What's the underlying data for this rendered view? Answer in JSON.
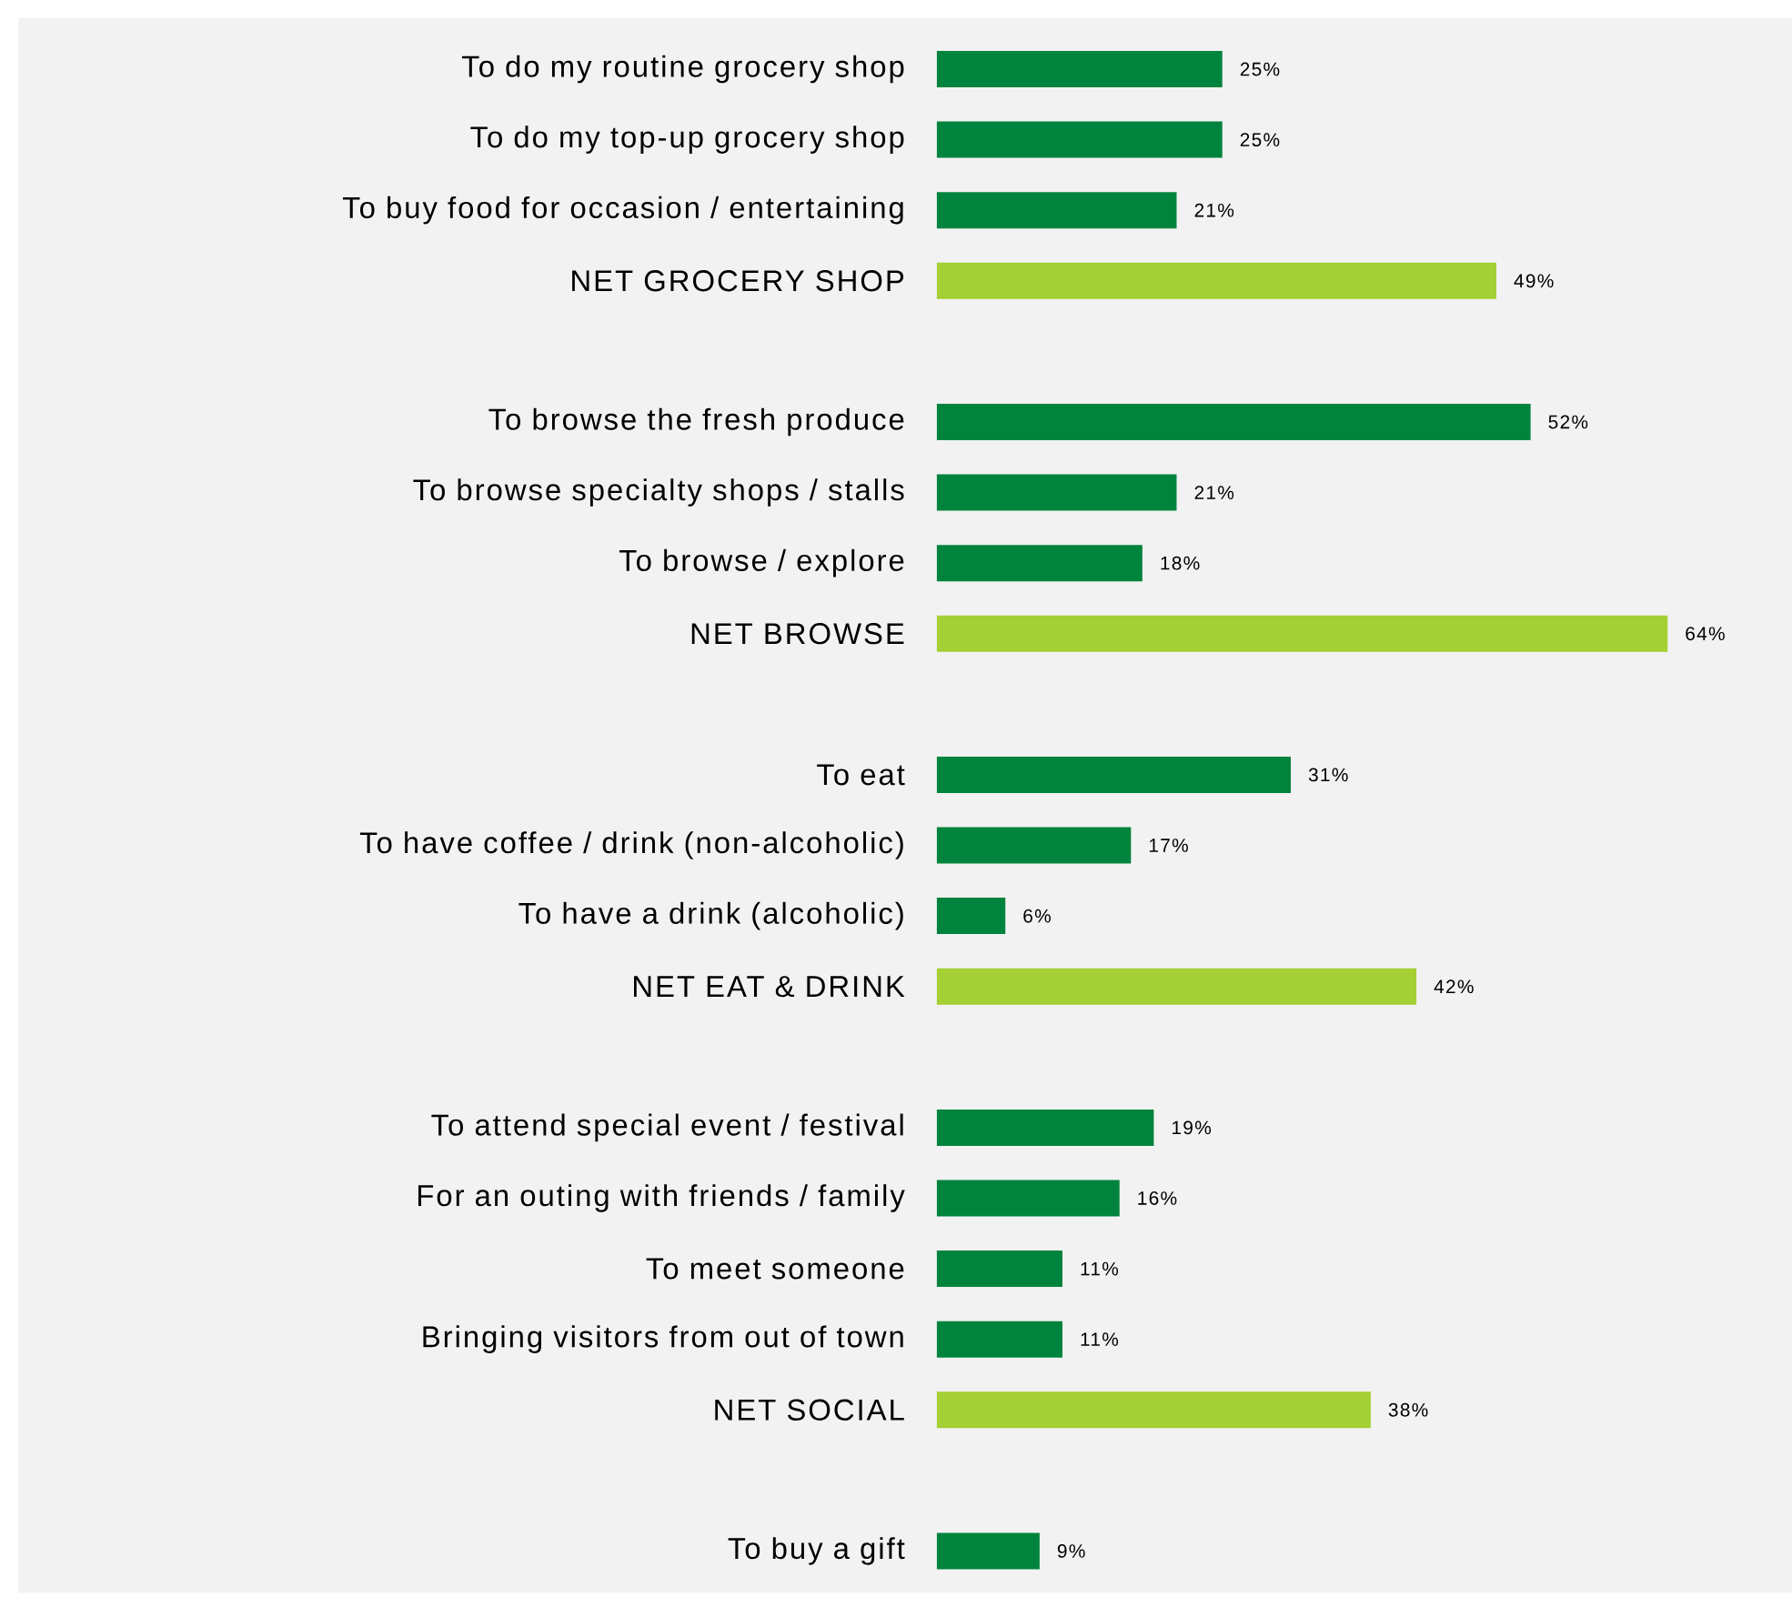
{
  "chart_data": {
    "type": "bar",
    "orientation": "horizontal",
    "categories": [
      "To do my routine grocery shop",
      "To do my top-up grocery shop",
      "To buy food for occasion / entertaining",
      "NET GROCERY SHOP",
      null,
      "To browse the fresh produce",
      "To browse specialty shops / stalls",
      "To browse / explore",
      "NET BROWSE",
      null,
      "To eat",
      "To have coffee / drink (non-alcoholic)",
      "To have a drink (alcoholic)",
      "NET EAT & DRINK",
      null,
      "To attend special event / festival",
      "For an outing with friends / family",
      "To meet someone",
      "Bringing visitors from out of town",
      "NET SOCIAL",
      null,
      "To buy a gift"
    ],
    "values": [
      25,
      25,
      21,
      49,
      null,
      52,
      21,
      18,
      64,
      null,
      31,
      17,
      6,
      42,
      null,
      19,
      16,
      11,
      11,
      38,
      null,
      9
    ],
    "value_labels": [
      "25%",
      "25%",
      "21%",
      "49%",
      null,
      "52%",
      "21%",
      "18%",
      "64%",
      null,
      "31%",
      "17%",
      "6%",
      "42%",
      null,
      "19%",
      "16%",
      "11%",
      "11%",
      "38%",
      null,
      "9%"
    ],
    "colors": [
      "#00843d",
      "#00843d",
      "#00843d",
      "#a4cf35",
      null,
      "#00843d",
      "#00843d",
      "#00843d",
      "#a4cf35",
      null,
      "#00843d",
      "#00843d",
      "#00843d",
      "#a4cf35",
      null,
      "#00843d",
      "#00843d",
      "#00843d",
      "#00843d",
      "#a4cf35",
      null,
      "#00843d"
    ]
  }
}
